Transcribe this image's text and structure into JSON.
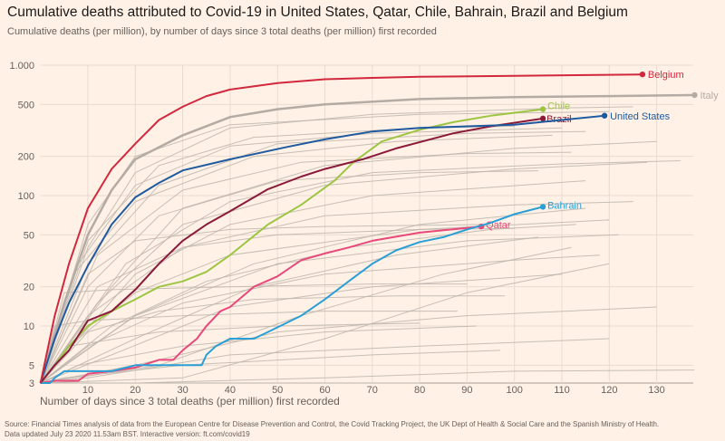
{
  "title": "Cumulative deaths attributed to Covid-19 in United States, Qatar, Chile, Bahrain, Brazil and Belgium",
  "subtitle": "Cumulative deaths (per million), by number of days since 3 total deaths (per million) first recorded",
  "source_line1": "Source: Financial Times analysis of data from the European Centre for Disease Prevention and Control, the Covid Tracking Project, the UK Dept of Health & Social Care and the Spanish Ministry of Health.",
  "source_line2": "Data updated July 23 2020 11.53am BST. Interactive version: ft.com/covid19",
  "colors": {
    "background": "#fff1e5",
    "grid": "#e9dbcf",
    "other_countries": "#bdb5ad"
  },
  "chart_data": {
    "type": "line",
    "title": "Cumulative deaths attributed to Covid-19 in United States, Qatar, Chile, Bahrain, Brazil and Belgium",
    "xlabel": "Number of days since 3 total deaths (per million) first recorded",
    "ylabel": "Cumulative deaths (per million)",
    "yscale": "log",
    "xlim": [
      0,
      140
    ],
    "ylim": [
      3,
      1000
    ],
    "xticks": [
      10,
      20,
      30,
      40,
      50,
      60,
      70,
      80,
      90,
      100,
      110,
      120,
      130
    ],
    "yticks": [
      {
        "value": 3,
        "label": "3"
      },
      {
        "value": 5,
        "label": "5"
      },
      {
        "value": 10,
        "label": "10"
      },
      {
        "value": 20,
        "label": "20"
      },
      {
        "value": 50,
        "label": "50"
      },
      {
        "value": 100,
        "label": "100"
      },
      {
        "value": 200,
        "label": "200"
      },
      {
        "value": 500,
        "label": "500"
      },
      {
        "value": 1000,
        "label": "1.000"
      }
    ],
    "grid": true,
    "legend": "direct labels at line ends",
    "series": [
      {
        "name": "Italy",
        "color": "#b3aba4",
        "points": [
          [
            0,
            3
          ],
          [
            5,
            15
          ],
          [
            10,
            50
          ],
          [
            15,
            110
          ],
          [
            20,
            190
          ],
          [
            30,
            290
          ],
          [
            40,
            400
          ],
          [
            50,
            460
          ],
          [
            60,
            500
          ],
          [
            80,
            550
          ],
          [
            100,
            570
          ],
          [
            120,
            580
          ],
          [
            138,
            590
          ]
        ]
      },
      {
        "name": "Qatar",
        "color": "#e8497a",
        "points": [
          [
            0,
            3
          ],
          [
            3,
            3.8
          ],
          [
            8,
            3.8
          ],
          [
            10,
            4.3
          ],
          [
            15,
            4.5
          ],
          [
            20,
            4.8
          ],
          [
            25,
            5.5
          ],
          [
            28,
            5.5
          ],
          [
            30,
            6.5
          ],
          [
            33,
            8
          ],
          [
            35,
            10
          ],
          [
            38,
            13
          ],
          [
            40,
            14
          ],
          [
            45,
            20
          ],
          [
            50,
            24
          ],
          [
            55,
            32
          ],
          [
            60,
            36
          ],
          [
            65,
            40
          ],
          [
            70,
            45
          ],
          [
            80,
            52
          ],
          [
            93,
            58
          ]
        ]
      },
      {
        "name": "Bahrain",
        "color": "#2a9fd6",
        "points": [
          [
            0,
            3
          ],
          [
            2,
            3
          ],
          [
            3,
            4
          ],
          [
            5,
            4.5
          ],
          [
            15,
            4.5
          ],
          [
            20,
            5
          ],
          [
            34,
            5
          ],
          [
            35,
            6
          ],
          [
            37,
            7
          ],
          [
            40,
            8
          ],
          [
            45,
            8
          ],
          [
            48,
            9
          ],
          [
            55,
            12
          ],
          [
            60,
            16
          ],
          [
            65,
            22
          ],
          [
            70,
            30
          ],
          [
            75,
            38
          ],
          [
            80,
            44
          ],
          [
            85,
            48
          ],
          [
            90,
            55
          ],
          [
            95,
            62
          ],
          [
            100,
            72
          ],
          [
            106,
            82
          ]
        ]
      },
      {
        "name": "Chile",
        "color": "#9dc544",
        "points": [
          [
            0,
            3
          ],
          [
            3,
            5
          ],
          [
            6,
            7
          ],
          [
            10,
            10
          ],
          [
            15,
            13
          ],
          [
            20,
            16
          ],
          [
            25,
            20
          ],
          [
            30,
            22
          ],
          [
            35,
            26
          ],
          [
            40,
            35
          ],
          [
            48,
            60
          ],
          [
            55,
            85
          ],
          [
            62,
            130
          ],
          [
            66,
            180
          ],
          [
            72,
            260
          ],
          [
            80,
            320
          ],
          [
            87,
            365
          ],
          [
            95,
            410
          ],
          [
            106,
            460
          ]
        ]
      },
      {
        "name": "Brazil",
        "color": "#8b1a3a",
        "points": [
          [
            0,
            3
          ],
          [
            3,
            5
          ],
          [
            6,
            6.5
          ],
          [
            10,
            11
          ],
          [
            15,
            13
          ],
          [
            20,
            19
          ],
          [
            25,
            30
          ],
          [
            30,
            45
          ],
          [
            35,
            60
          ],
          [
            40,
            76
          ],
          [
            48,
            112
          ],
          [
            55,
            140
          ],
          [
            60,
            160
          ],
          [
            68,
            190
          ],
          [
            75,
            230
          ],
          [
            87,
            300
          ],
          [
            95,
            340
          ],
          [
            106,
            390
          ]
        ]
      },
      {
        "name": "United States",
        "color": "#1e5aa0",
        "points": [
          [
            0,
            3
          ],
          [
            3,
            8
          ],
          [
            6,
            15
          ],
          [
            10,
            29
          ],
          [
            15,
            60
          ],
          [
            20,
            97
          ],
          [
            25,
            125
          ],
          [
            30,
            156
          ],
          [
            40,
            190
          ],
          [
            52,
            236
          ],
          [
            60,
            270
          ],
          [
            70,
            310
          ],
          [
            80,
            330
          ],
          [
            90,
            340
          ],
          [
            100,
            350
          ],
          [
            110,
            380
          ],
          [
            119,
            410
          ]
        ]
      },
      {
        "name": "Belgium",
        "color": "#d1283e",
        "points": [
          [
            0,
            3.5
          ],
          [
            3,
            12
          ],
          [
            6,
            30
          ],
          [
            10,
            80
          ],
          [
            15,
            160
          ],
          [
            20,
            250
          ],
          [
            25,
            380
          ],
          [
            30,
            480
          ],
          [
            35,
            580
          ],
          [
            40,
            650
          ],
          [
            50,
            730
          ],
          [
            60,
            780
          ],
          [
            70,
            800
          ],
          [
            80,
            815
          ],
          [
            100,
            830
          ],
          [
            127,
            850
          ]
        ]
      }
    ],
    "other_countries": [
      [
        [
          0,
          3
        ],
        [
          10,
          40
        ],
        [
          20,
          150
        ],
        [
          40,
          330
        ],
        [
          70,
          420
        ],
        [
          110,
          470
        ],
        [
          125,
          480
        ]
      ],
      [
        [
          0,
          3
        ],
        [
          10,
          60
        ],
        [
          20,
          200
        ],
        [
          40,
          350
        ],
        [
          80,
          420
        ],
        [
          120,
          440
        ]
      ],
      [
        [
          0,
          3
        ],
        [
          8,
          30
        ],
        [
          20,
          120
        ],
        [
          40,
          240
        ],
        [
          70,
          300
        ],
        [
          110,
          330
        ]
      ],
      [
        [
          0,
          3
        ],
        [
          10,
          30
        ],
        [
          25,
          120
        ],
        [
          50,
          250
        ],
        [
          90,
          300
        ],
        [
          115,
          310
        ]
      ],
      [
        [
          0,
          3
        ],
        [
          15,
          20
        ],
        [
          30,
          80
        ],
        [
          60,
          170
        ],
        [
          100,
          230
        ],
        [
          130,
          260
        ]
      ],
      [
        [
          0,
          3
        ],
        [
          12,
          15
        ],
        [
          30,
          60
        ],
        [
          60,
          120
        ],
        [
          100,
          160
        ],
        [
          128,
          180
        ]
      ],
      [
        [
          0,
          3
        ],
        [
          10,
          20
        ],
        [
          25,
          70
        ],
        [
          50,
          130
        ],
        [
          80,
          150
        ],
        [
          105,
          155
        ]
      ],
      [
        [
          0,
          3
        ],
        [
          5,
          6
        ],
        [
          20,
          25
        ],
        [
          40,
          60
        ],
        [
          70,
          100
        ],
        [
          115,
          130
        ]
      ],
      [
        [
          0,
          3
        ],
        [
          10,
          12
        ],
        [
          30,
          40
        ],
        [
          60,
          70
        ],
        [
          100,
          85
        ],
        [
          125,
          90
        ]
      ],
      [
        [
          0,
          3
        ],
        [
          8,
          8
        ],
        [
          20,
          18
        ],
        [
          40,
          35
        ],
        [
          80,
          55
        ],
        [
          120,
          65
        ]
      ],
      [
        [
          0,
          3
        ],
        [
          5,
          5
        ],
        [
          20,
          12
        ],
        [
          50,
          30
        ],
        [
          90,
          45
        ],
        [
          122,
          50
        ]
      ],
      [
        [
          0,
          3
        ],
        [
          10,
          7
        ],
        [
          30,
          15
        ],
        [
          60,
          25
        ],
        [
          100,
          32
        ],
        [
          118,
          35
        ]
      ],
      [
        [
          0,
          3
        ],
        [
          15,
          6
        ],
        [
          40,
          14
        ],
        [
          70,
          20
        ],
        [
          110,
          25
        ]
      ],
      [
        [
          0,
          3
        ],
        [
          20,
          5
        ],
        [
          50,
          9
        ],
        [
          90,
          12
        ],
        [
          130,
          14
        ]
      ],
      [
        [
          0,
          3
        ],
        [
          10,
          4
        ],
        [
          40,
          6
        ],
        [
          80,
          7
        ],
        [
          120,
          8
        ]
      ],
      [
        [
          0,
          3
        ],
        [
          20,
          3.5
        ],
        [
          60,
          4
        ],
        [
          100,
          4.5
        ],
        [
          138,
          4.6
        ]
      ],
      [
        [
          0,
          3
        ],
        [
          30,
          3.3
        ],
        [
          80,
          3.5
        ]
      ],
      [
        [
          0,
          3
        ],
        [
          5,
          18
        ],
        [
          15,
          19
        ],
        [
          40,
          20
        ],
        [
          70,
          21
        ],
        [
          90,
          21
        ]
      ],
      [
        [
          0,
          3
        ],
        [
          10,
          25
        ],
        [
          20,
          45
        ],
        [
          40,
          55
        ],
        [
          60,
          58
        ],
        [
          95,
          60
        ]
      ],
      [
        [
          0,
          3
        ],
        [
          12,
          20
        ],
        [
          30,
          40
        ],
        [
          50,
          50
        ],
        [
          80,
          55
        ],
        [
          100,
          56
        ]
      ],
      [
        [
          0,
          3
        ],
        [
          15,
          10
        ],
        [
          35,
          22
        ],
        [
          65,
          40
        ],
        [
          95,
          55
        ],
        [
          113,
          60
        ]
      ],
      [
        [
          0,
          3
        ],
        [
          20,
          8
        ],
        [
          45,
          20
        ],
        [
          75,
          35
        ],
        [
          105,
          48
        ]
      ],
      [
        [
          0,
          3
        ],
        [
          25,
          5
        ],
        [
          55,
          12
        ],
        [
          85,
          25
        ],
        [
          112,
          40
        ]
      ],
      [
        [
          0,
          3
        ],
        [
          30,
          4
        ],
        [
          60,
          8
        ],
        [
          90,
          18
        ],
        [
          120,
          30
        ]
      ],
      [
        [
          0,
          3
        ],
        [
          10,
          9
        ],
        [
          25,
          13
        ],
        [
          45,
          16
        ],
        [
          75,
          17
        ],
        [
          98,
          17
        ]
      ],
      [
        [
          0,
          3
        ],
        [
          8,
          5
        ],
        [
          30,
          7
        ],
        [
          60,
          9
        ],
        [
          92,
          10
        ]
      ],
      [
        [
          0,
          3
        ],
        [
          5,
          4
        ],
        [
          30,
          5
        ],
        [
          70,
          6
        ],
        [
          97,
          6.5
        ]
      ],
      [
        [
          0,
          3
        ],
        [
          12,
          35
        ],
        [
          30,
          110
        ],
        [
          55,
          180
        ],
        [
          90,
          210
        ],
        [
          112,
          215
        ]
      ],
      [
        [
          0,
          3
        ],
        [
          10,
          45
        ],
        [
          25,
          170
        ],
        [
          45,
          280
        ],
        [
          80,
          330
        ],
        [
          100,
          340
        ]
      ],
      [
        [
          0,
          3
        ],
        [
          7,
          25
        ],
        [
          20,
          90
        ],
        [
          45,
          200
        ],
        [
          75,
          260
        ],
        [
          108,
          290
        ]
      ],
      [
        [
          0,
          3
        ],
        [
          18,
          30
        ],
        [
          40,
          90
        ],
        [
          70,
          150
        ],
        [
          110,
          175
        ],
        [
          135,
          185
        ]
      ],
      [
        [
          0,
          3
        ],
        [
          20,
          12
        ],
        [
          45,
          30
        ],
        [
          80,
          60
        ],
        [
          115,
          80
        ]
      ],
      [
        [
          0,
          3
        ],
        [
          3,
          10
        ],
        [
          10,
          11
        ],
        [
          30,
          12
        ],
        [
          60,
          13
        ],
        [
          88,
          13
        ]
      ],
      [
        [
          0,
          3
        ],
        [
          6,
          7
        ],
        [
          25,
          9
        ],
        [
          50,
          10
        ],
        [
          80,
          10.5
        ]
      ]
    ]
  }
}
